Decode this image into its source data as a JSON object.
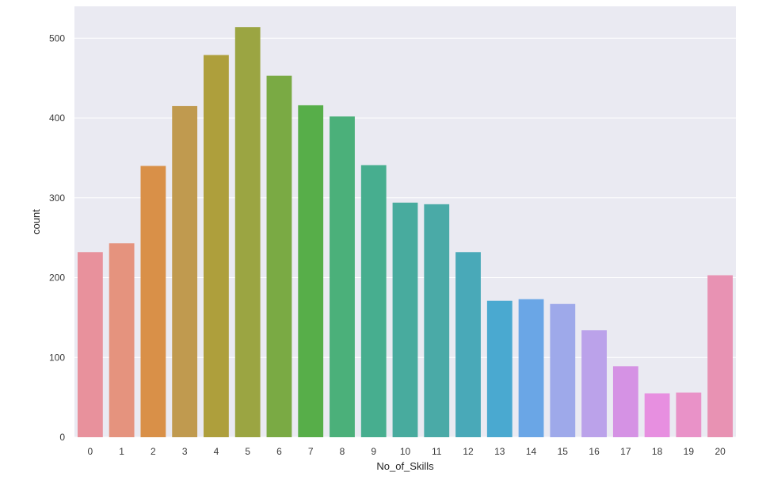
{
  "chart_data": {
    "type": "bar",
    "xlabel": "No_of_Skills",
    "ylabel": "count",
    "categories": [
      "0",
      "1",
      "2",
      "3",
      "4",
      "5",
      "6",
      "7",
      "8",
      "9",
      "10",
      "11",
      "12",
      "13",
      "14",
      "15",
      "16",
      "17",
      "18",
      "19",
      "20"
    ],
    "values": [
      232,
      243,
      340,
      415,
      479,
      514,
      453,
      416,
      402,
      341,
      294,
      292,
      232,
      171,
      173,
      167,
      134,
      89,
      55,
      56,
      203
    ],
    "ylim": [
      0,
      540
    ],
    "yticks": [
      0,
      100,
      200,
      300,
      400,
      500
    ],
    "grid": true,
    "background": "#eaeaf2",
    "colors": [
      "#e8919c",
      "#e5937e",
      "#d99048",
      "#c09a4f",
      "#ae9f3c",
      "#9ba542",
      "#7aaa44",
      "#57ae49",
      "#4bb07a",
      "#47ae8f",
      "#48ab9e",
      "#4aaaa7",
      "#49a9b8",
      "#4aa9d0",
      "#6aa6e6",
      "#9ea9ea",
      "#bba2ea",
      "#d592e4",
      "#e78fe0",
      "#e992c8",
      "#e892b3"
    ]
  }
}
